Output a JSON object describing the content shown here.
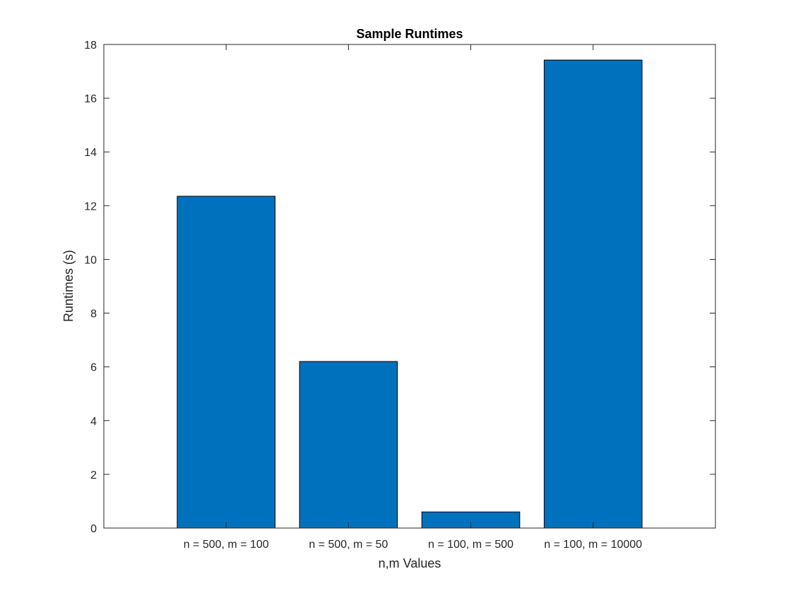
{
  "chart_data": {
    "type": "bar",
    "title": "Sample Runtimes",
    "xlabel": "n,m Values",
    "ylabel": "Runtimes (s)",
    "categories": [
      "n = 500, m = 100",
      "n = 500, m = 50",
      "n = 100, m = 500",
      "n = 100, m = 10000"
    ],
    "values": [
      12.35,
      6.2,
      0.6,
      17.42
    ],
    "ylim": [
      0,
      18
    ],
    "yticks": [
      0,
      2,
      4,
      6,
      8,
      10,
      12,
      14,
      16,
      18
    ],
    "grid": false,
    "legend": "none",
    "bar_color": "#0072BD",
    "edge_color": "#000000",
    "axis_color": "#262626"
  }
}
